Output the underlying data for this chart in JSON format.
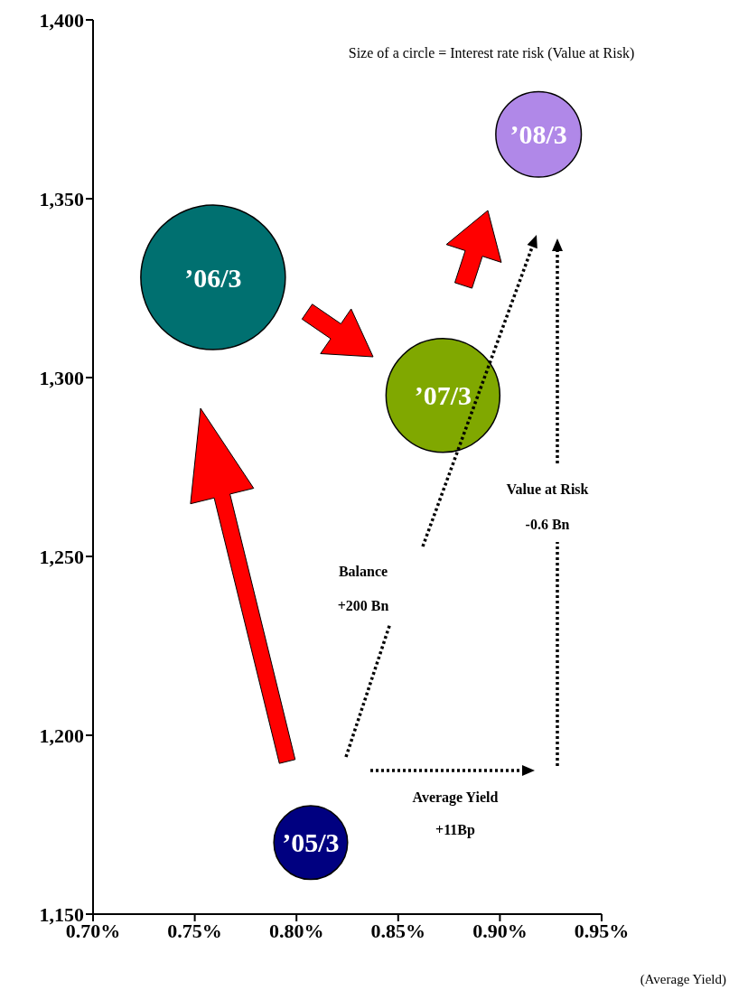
{
  "chart_data": {
    "type": "bubble",
    "annotations": [
      "Size of a circle = Interest rate risk (Value at Risk)",
      "Balance",
      "+200 Bn",
      "Value at Risk",
      "-0.6 Bn",
      "Average Yield",
      "+11Bp"
    ],
    "xlabel": "(Average Yield)",
    "series": [
      {
        "name": "’05/3",
        "color": "#000080",
        "x": [
          0.807
        ],
        "values": [
          1170
        ],
        "sizes": [
          0.26
        ]
      },
      {
        "name": "’06/3",
        "color": "#007070",
        "x": [
          0.759
        ],
        "values": [
          1328
        ],
        "sizes": [
          1
        ]
      },
      {
        "name": "’07/3",
        "color": "#80a800",
        "x": [
          0.872
        ],
        "values": [
          1295
        ],
        "sizes": [
          0.62
        ]
      },
      {
        "name": "’08/3",
        "color": "#b088e8",
        "x": [
          0.919
        ],
        "values": [
          1368
        ],
        "sizes": [
          0.35
        ]
      }
    ],
    "xlim": [
      0.7,
      0.95
    ],
    "xticks": [
      {
        "value": 0.7,
        "label": "0.70%"
      },
      {
        "value": 0.75,
        "label": "0.75%"
      },
      {
        "value": 0.8,
        "label": "0.80%"
      },
      {
        "value": 0.85,
        "label": "0.85%"
      },
      {
        "value": 0.9,
        "label": "0.90%"
      },
      {
        "value": 0.95,
        "label": "0.95%"
      }
    ],
    "ylim": [
      1150,
      1400
    ],
    "yticks": [
      {
        "value": 1150,
        "label": "1,150"
      },
      {
        "value": 1200,
        "label": "1,200"
      },
      {
        "value": 1250,
        "label": "1,250"
      },
      {
        "value": 1300,
        "label": "1,300"
      },
      {
        "value": 1350,
        "label": "1,350"
      },
      {
        "value": 1400,
        "label": "1,400"
      }
    ],
    "grid": false,
    "legend": false
  }
}
